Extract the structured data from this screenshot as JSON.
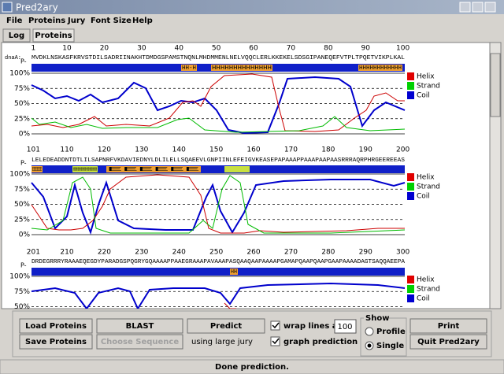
{
  "window": {
    "title": "Pred2ary"
  },
  "menu": [
    "File",
    "Proteins",
    "Jury",
    "Font Size",
    "Help"
  ],
  "tabs": [
    "Log",
    "Proteins"
  ],
  "protein_label": "dnaA:",
  "panels": [
    {
      "ticks": [
        "1",
        "10",
        "20",
        "30",
        "40",
        "50",
        "60",
        "70",
        "80",
        "90",
        "100"
      ],
      "sequence": "MVDKLNSKASFKRVSTDILSADRIINAKHTDMDGSPAMSTNQNLMHDMMENLNELVQQCLERLKKEKELSDSGIPANEQEFVTPLTPQETVIKPLKAL",
      "p_label": "P-",
      "segments": [
        "HH-H",
        "HHHHHHHHHHHHHH",
        "HHHHHHHHHHHH"
      ],
      "percents": [
        "100%",
        "75%",
        "50%",
        "25%",
        "0%"
      ],
      "legend": [
        "Helix",
        "Strand",
        "Coil"
      ]
    },
    {
      "ticks": [
        "101",
        "110",
        "120",
        "130",
        "140",
        "150",
        "160",
        "170",
        "180",
        "190",
        "200"
      ],
      "sequence": "LELEDEADDNTDTLILSAPNRFVKDAVIEDNYLDLILELLSQAEEVLGNPIINLEFEIGVKEASEPAPAAAPPAAAPAAPAASRRRAQRPHRGEEREEAS",
      "p_label": "P-",
      "segments": [
        "EEEEEE",
        "HHHHHHHHHHHHHHHHHHHHHHH",
        "EEEEEE"
      ],
      "percents": [
        "100%",
        "75%",
        "50%",
        "25%",
        "0%"
      ],
      "legend": [
        "Helix",
        "Strand",
        "Coil"
      ]
    },
    {
      "ticks": [
        "201",
        "210",
        "220",
        "230",
        "240",
        "250",
        "260",
        "270",
        "280",
        "290",
        "300"
      ],
      "sequence": "DRDEGRRRYRAAAEQEGDYPARADGSPQGRYGQAAAAPPAAEGRAAAPAVAAAPASQAAQAAPAAAAPGAMAPQAAPQAAPGAAPAAAADAGTSAQQAEEPA",
      "p_label": "P-",
      "segments": [
        "HH"
      ],
      "percents": [
        "100%",
        "75%",
        "50%"
      ],
      "legend": [
        "Helix",
        "Strand",
        "Coil"
      ]
    }
  ],
  "controls": {
    "load": "Load Proteins",
    "save": "Save Proteins",
    "blast": "BLAST",
    "choose": "Choose Sequence",
    "predict": "Predict",
    "jury_note": "using large jury",
    "wrap": "wrap lines at",
    "wrap_value": "100",
    "graph": "graph prediction",
    "show": "Show",
    "profile": "Profile",
    "single": "Single",
    "print": "Print",
    "quit": "Quit Pred2ary"
  },
  "status": "Done prediction."
}
